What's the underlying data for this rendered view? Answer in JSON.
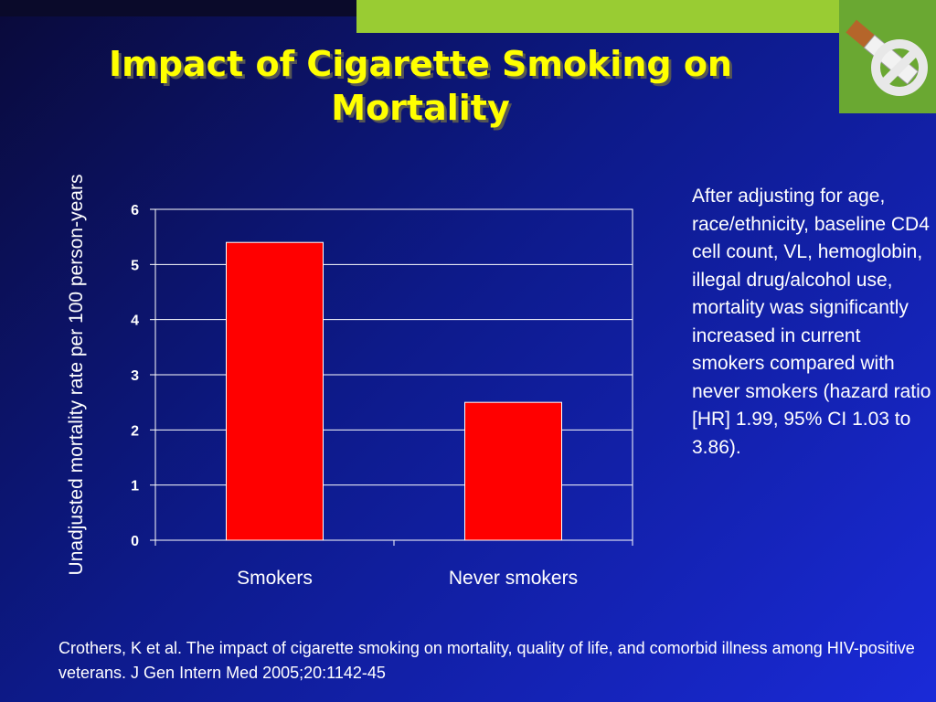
{
  "title": "Impact of Cigarette Smoking on Mortality",
  "colors": {
    "bar": "#ff0000",
    "title": "#ffff00",
    "accent": "#99cc33"
  },
  "logo": {
    "icon": "no-smoking-cigarette-icon"
  },
  "chart_data": {
    "type": "bar",
    "categories": [
      "Smokers",
      "Never smokers"
    ],
    "values": [
      5.4,
      2.5
    ],
    "ylabel": "Unadjusted mortality rate per 100 person-years",
    "xlabel": "",
    "ylim": [
      0,
      6
    ],
    "yticks": [
      "0",
      "1",
      "2",
      "3",
      "4",
      "5",
      "6"
    ],
    "grid": true
  },
  "note": "After adjusting for age, race/ethnicity, baseline CD4 cell count, VL, hemoglobin, illegal drug/alcohol use, mortality was significantly increased in current smokers compared with never smokers (hazard ratio [HR] 1.99, 95% CI 1.03 to 3.86).",
  "reference": "Crothers, K et al. The impact of cigarette smoking on mortality, quality of life, and comorbid illness among HIV-positive veterans. J Gen Intern Med 2005;20:1142-45"
}
